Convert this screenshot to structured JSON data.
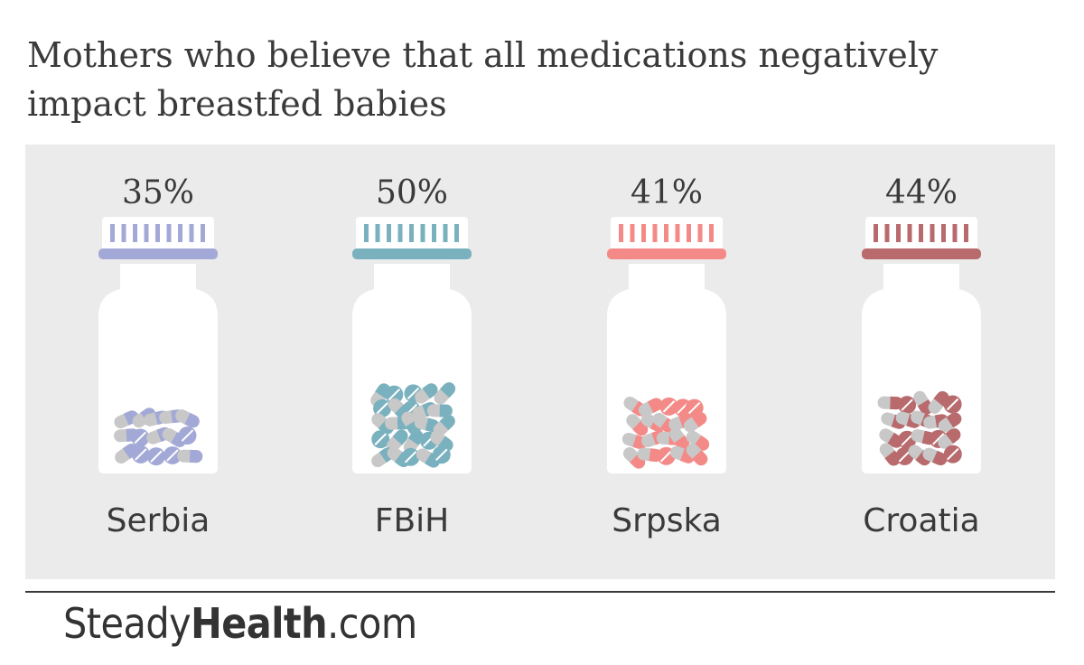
{
  "title": "Mothers who believe that all medications negatively impact breastfed babies",
  "brand": {
    "part1": "Steady",
    "part2": "Health",
    "part3": ".com"
  },
  "colors": {
    "panel": "#ebebeb",
    "bottle": "#ffffff",
    "grey_pill": "#c8c8c8",
    "text": "#3a3a3a"
  },
  "chart_data": {
    "type": "bar",
    "title": "Mothers who believe that all medications negatively impact breastfed babies",
    "unit": "%",
    "categories": [
      "Serbia",
      "FBiH",
      "Srpska",
      "Croatia"
    ],
    "values": [
      35,
      50,
      41,
      44
    ],
    "value_labels": [
      "35%",
      "50%",
      "41%",
      "44%"
    ],
    "colors": [
      "#a3a9d6",
      "#7ab1be",
      "#f48a87",
      "#b86a6d"
    ],
    "ylim": [
      0,
      100
    ],
    "grid": false,
    "legend": "none"
  }
}
